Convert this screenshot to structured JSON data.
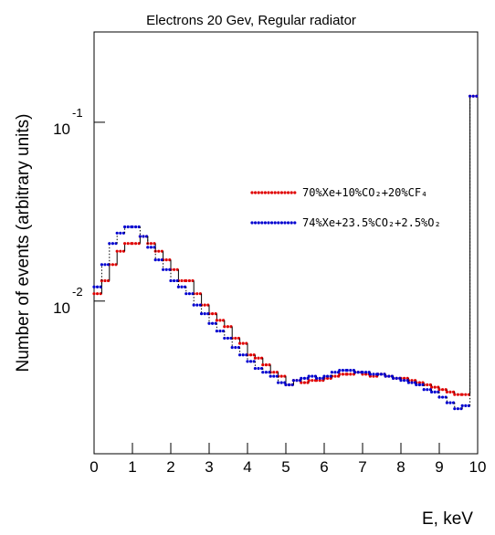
{
  "chart_data": {
    "type": "step-histogram",
    "title": "Electrons 20 Gev, Regular radiator",
    "x_label": "E, keV",
    "y_label": "Number of events (arbitrary units)",
    "xlim": [
      0,
      10
    ],
    "xticks": [
      0,
      1,
      2,
      3,
      4,
      5,
      6,
      7,
      8,
      9,
      10
    ],
    "ylim": [
      0.0014,
      0.32
    ],
    "log_y": true,
    "yticks": [
      {
        "value": 0.01,
        "label": "10",
        "exponent": "-2"
      },
      {
        "value": 0.1,
        "label": "10",
        "exponent": "-1"
      }
    ],
    "bins": [
      0,
      0.2,
      0.4,
      0.6,
      0.8,
      1,
      1.2,
      1.4,
      1.6,
      1.8,
      2,
      2.2,
      2.4,
      2.6,
      2.8,
      3,
      3.2,
      3.4,
      3.6,
      3.8,
      4,
      4.2,
      4.4,
      4.6,
      4.8,
      5,
      5.2,
      5.4,
      5.6,
      5.8,
      6,
      6.2,
      6.4,
      6.6,
      6.8,
      7,
      7.2,
      7.4,
      7.6,
      7.8,
      8,
      8.2,
      8.4,
      8.6,
      8.8,
      9,
      9.2,
      9.4,
      9.6,
      9.8,
      10
    ],
    "series": [
      {
        "name": "70%Xe+10%CO₂+20%CF₄",
        "color": "#e00000",
        "values": [
          0.011,
          0.013,
          0.016,
          0.019,
          0.021,
          0.021,
          0.023,
          0.021,
          0.019,
          0.017,
          0.015,
          0.013,
          0.013,
          0.011,
          0.0095,
          0.0085,
          0.0078,
          0.0072,
          0.0062,
          0.0058,
          0.005,
          0.0048,
          0.0044,
          0.004,
          0.0038,
          0.0034,
          0.0036,
          0.0035,
          0.0036,
          0.0036,
          0.0037,
          0.0038,
          0.0039,
          0.0039,
          0.004,
          0.0039,
          0.0038,
          0.0039,
          0.0038,
          0.0037,
          0.0037,
          0.0036,
          0.0035,
          0.0034,
          0.0033,
          0.0032,
          0.0031,
          0.003,
          0.003,
          0.14
        ]
      },
      {
        "name": "74%Xe+23.5%CO₂+2.5%O₂",
        "color": "#0000d0",
        "values": [
          0.012,
          0.016,
          0.021,
          0.024,
          0.026,
          0.026,
          0.023,
          0.02,
          0.017,
          0.015,
          0.013,
          0.012,
          0.011,
          0.0095,
          0.0085,
          0.0075,
          0.0068,
          0.0062,
          0.0055,
          0.005,
          0.0046,
          0.0042,
          0.004,
          0.0038,
          0.0035,
          0.0034,
          0.0036,
          0.0037,
          0.0038,
          0.0037,
          0.0038,
          0.004,
          0.0041,
          0.0041,
          0.004,
          0.004,
          0.0039,
          0.0039,
          0.0038,
          0.0037,
          0.0036,
          0.0035,
          0.0034,
          0.0032,
          0.0031,
          0.0029,
          0.0027,
          0.0025,
          0.0026,
          0.14
        ]
      }
    ]
  }
}
